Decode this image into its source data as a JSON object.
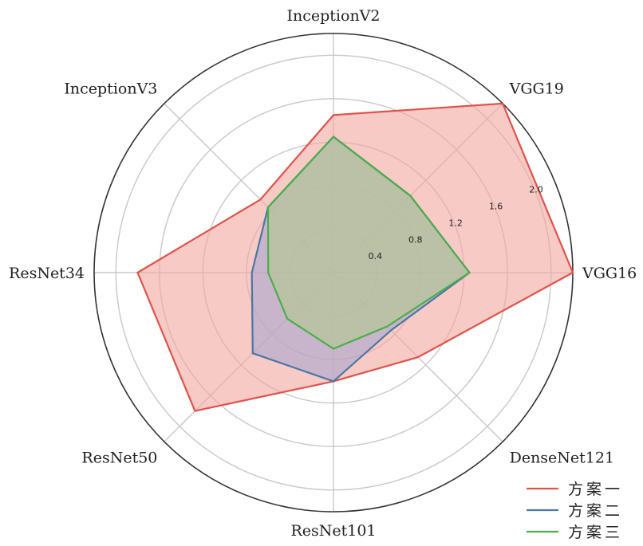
{
  "chart_data": {
    "type": "radar",
    "categories": [
      "VGG16",
      "VGG19",
      "InceptionV2",
      "InceptionV3",
      "ResNet34",
      "ResNet50",
      "ResNet101",
      "DenseNet121"
    ],
    "series": [
      {
        "name": "方案一",
        "color": "#e0524a",
        "fill": "#f4a6a0",
        "values": [
          2.2,
          2.2,
          1.45,
          0.95,
          1.8,
          1.8,
          1.0,
          1.1
        ]
      },
      {
        "name": "方案二",
        "color": "#4a77a6",
        "fill": "#a8a6cf",
        "values": [
          1.25,
          1.0,
          1.25,
          0.85,
          0.75,
          1.05,
          1.0,
          0.75
        ]
      },
      {
        "name": "方案三",
        "color": "#4aae4a",
        "fill": "#b3c98f",
        "values": [
          1.25,
          1.0,
          1.25,
          0.85,
          0.6,
          0.6,
          0.7,
          0.7
        ]
      }
    ],
    "rmax": 2.2,
    "grid_rings": [
      0.4,
      0.8,
      1.2,
      1.6,
      2.0
    ],
    "tick_labels": [
      "0.4",
      "0.8",
      "1.2",
      "1.6",
      "2.0"
    ],
    "grid": true,
    "legend_position": "bottom-right"
  }
}
